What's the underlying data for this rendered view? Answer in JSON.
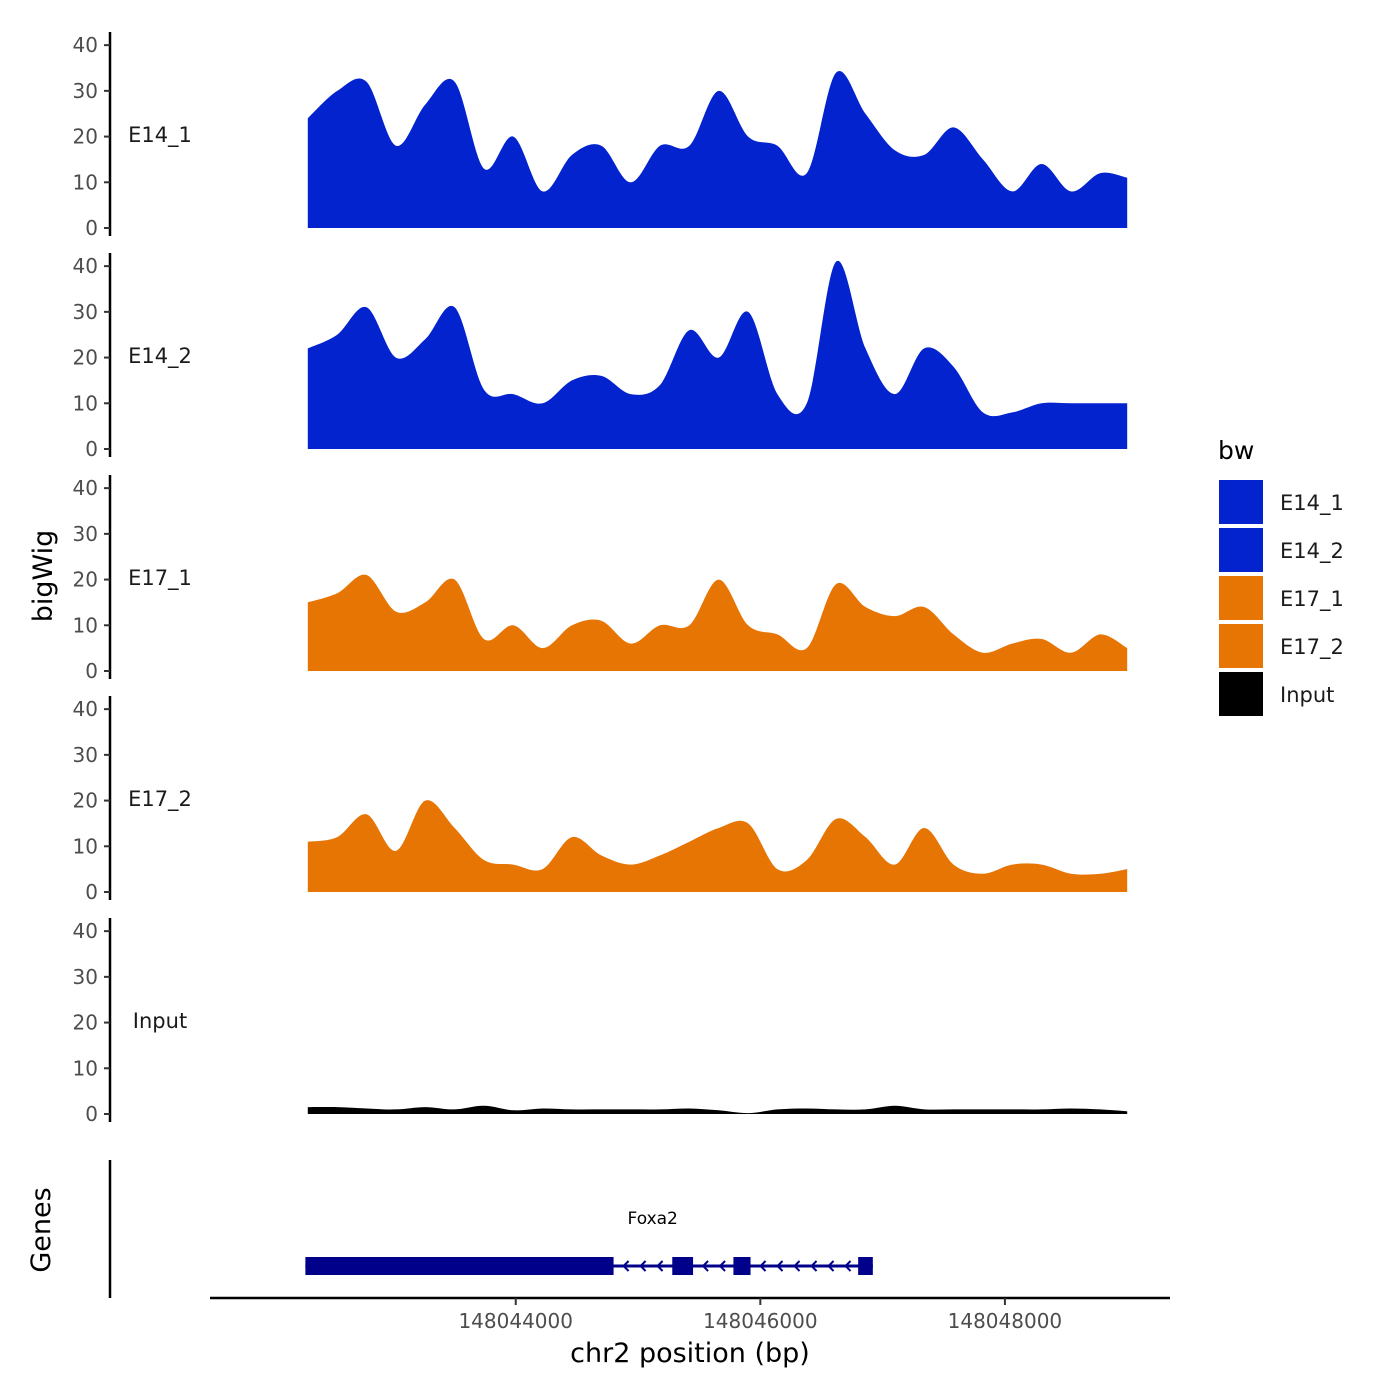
{
  "chart_data": {
    "type": "area",
    "title": "",
    "ylabel": "bigWig",
    "xlabel": "chr2 position (bp)",
    "xlim": [
      148041500,
      148049350
    ],
    "ylim": [
      0,
      42
    ],
    "y_ticks": [
      0,
      10,
      20,
      30,
      40
    ],
    "x_ticks": [
      148044000,
      148046000,
      148048000
    ],
    "x_tick_labels": [
      "148044000",
      "148046000",
      "148048000"
    ],
    "colors": {
      "E14_1": "#0323cf",
      "E14_2": "#0323cf",
      "E17_1": "#e77504",
      "E17_2": "#e77504",
      "Input": "#000000",
      "gene": "#00008b"
    },
    "legend": {
      "title": "bw",
      "position": "right",
      "entries": [
        {
          "label": "E14_1",
          "color": "#0323cf"
        },
        {
          "label": "E14_2",
          "color": "#0323cf"
        },
        {
          "label": "E17_1",
          "color": "#e77504"
        },
        {
          "label": "E17_2",
          "color": "#e77504"
        },
        {
          "label": "Input",
          "color": "#000000"
        }
      ]
    },
    "x": [
      148042300,
      148042540,
      148042780,
      148043020,
      148043260,
      148043500,
      148043740,
      148043980,
      148044220,
      148044460,
      148044700,
      148044940,
      148045180,
      148045420,
      148045660,
      148045900,
      148046140,
      148046380,
      148046620,
      148046860,
      148047100,
      148047340,
      148047580,
      148047820,
      148048060,
      148048300,
      148048540,
      148048780,
      148049000
    ],
    "series": [
      {
        "name": "E14_1",
        "values": [
          24,
          30,
          32,
          18,
          27,
          32,
          13,
          20,
          8,
          16,
          18,
          10,
          18,
          18,
          30,
          20,
          18,
          12,
          34,
          25,
          17,
          16,
          22,
          15,
          8,
          14,
          8,
          12,
          11
        ]
      },
      {
        "name": "E14_2",
        "values": [
          22,
          25,
          31,
          20,
          24,
          31,
          13,
          12,
          10,
          15,
          16,
          12,
          14,
          26,
          20,
          30,
          12,
          10,
          41,
          22,
          12,
          22,
          18,
          8,
          8,
          10,
          10,
          10,
          10
        ]
      },
      {
        "name": "E17_1",
        "values": [
          15,
          17,
          21,
          13,
          15,
          20,
          7,
          10,
          5,
          10,
          11,
          6,
          10,
          10,
          20,
          10,
          8,
          5,
          19,
          14,
          12,
          14,
          8,
          4,
          6,
          7,
          4,
          8,
          5
        ]
      },
      {
        "name": "E17_2",
        "values": [
          11,
          12,
          17,
          9,
          20,
          14,
          7,
          6,
          5,
          12,
          8,
          6,
          8,
          11,
          14,
          15,
          5,
          7,
          16,
          12,
          6,
          14,
          6,
          4,
          6,
          6,
          4,
          4,
          5
        ]
      },
      {
        "name": "Input",
        "values": [
          1.5,
          1.5,
          1.2,
          1.0,
          1.5,
          1.0,
          1.8,
          0.8,
          1.2,
          1.0,
          1.0,
          1.0,
          1.0,
          1.2,
          0.8,
          0.2,
          1.0,
          1.2,
          1.0,
          1.0,
          1.8,
          1.0,
          1.0,
          1.0,
          1.0,
          1.0,
          1.2,
          1.0,
          0.6
        ]
      }
    ],
    "genes": {
      "track_label": "Genes",
      "items": [
        {
          "name": "Foxa2",
          "start": 148042280,
          "end": 148046920,
          "strand": "-",
          "exons": [
            [
              148042280,
              148044800
            ],
            [
              148045280,
              148045450
            ],
            [
              148045780,
              148045920
            ],
            [
              148046800,
              148046920
            ]
          ]
        }
      ]
    }
  }
}
